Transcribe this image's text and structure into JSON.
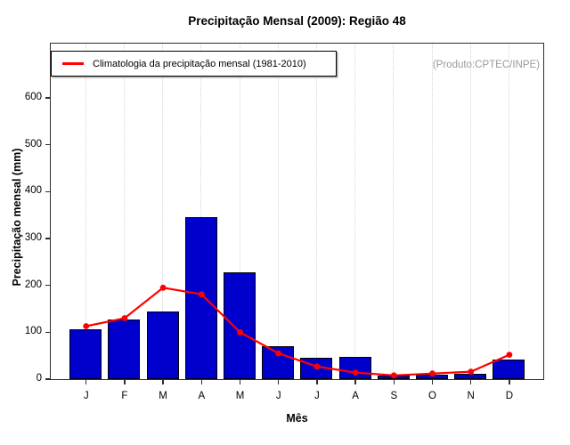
{
  "title": "Precipitação Mensal (2009): Região 48",
  "watermark": "(Produto:CPTEC/INPE)",
  "legend": {
    "label": "Climatologia da precipitação mensal (1981-2010)",
    "line_color": "#ff0000"
  },
  "colors": {
    "bar_fill": "#0000cd",
    "bar_border": "#000000",
    "climatology_line": "#ff0000",
    "gridline": "#d4d4d4",
    "watermark_text": "#9a9a9a",
    "axis": "#2e2e2e"
  },
  "chart_data": {
    "type": "bar",
    "title": "Precipitação Mensal (2009): Região 48",
    "xlabel": "Mês",
    "ylabel": "Precipitação mensal (mm)",
    "categories": [
      "J",
      "F",
      "M",
      "A",
      "M",
      "J",
      "J",
      "A",
      "S",
      "O",
      "N",
      "D"
    ],
    "series": [
      {
        "name": "Precipitação mensal (2009)",
        "type": "bar",
        "color": "#0000cd",
        "values": [
          105,
          126,
          143,
          345,
          227,
          69,
          45,
          47,
          7,
          8,
          10,
          40
        ]
      },
      {
        "name": "Climatologia da precipitação mensal (1981-2010)",
        "type": "line",
        "color": "#ff0000",
        "values": [
          113,
          130,
          195,
          181,
          100,
          55,
          27,
          14,
          8,
          12,
          16,
          52
        ]
      }
    ],
    "ylim": [
      0,
      600
    ],
    "yticks": [
      0,
      100,
      200,
      300,
      400,
      500,
      600
    ],
    "grid": "vertical-dotted",
    "legend_position": "top-left"
  }
}
